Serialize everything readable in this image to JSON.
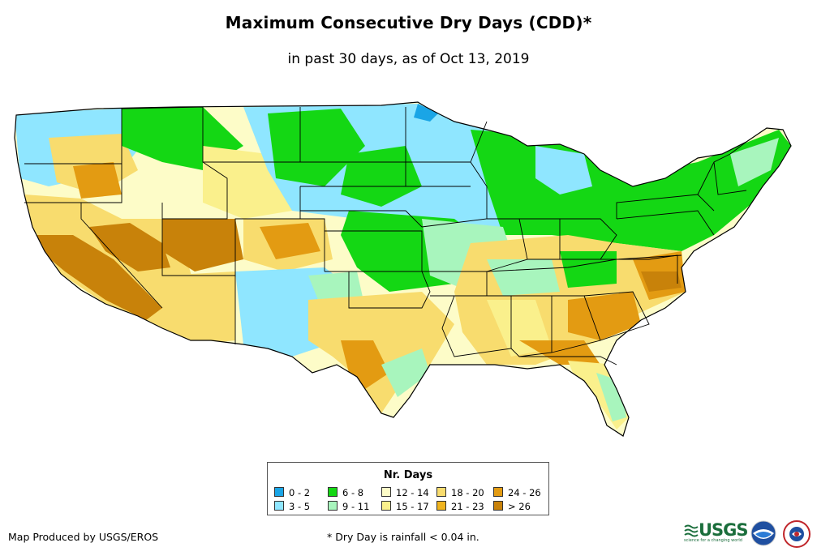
{
  "title": "Maximum Consecutive Dry Days (CDD)*",
  "subtitle": "in past 30 days, as of Oct 13, 2019",
  "legend": {
    "title": "Nr. Days",
    "items": [
      {
        "label": "0 - 2",
        "color": "#1aa5e6"
      },
      {
        "label": "3 - 5",
        "color": "#8fe6ff"
      },
      {
        "label": "6 - 8",
        "color": "#14d714"
      },
      {
        "label": "9 - 11",
        "color": "#a8f5bd"
      },
      {
        "label": "12 - 14",
        "color": "#fdfcc8"
      },
      {
        "label": "15 - 17",
        "color": "#faf08c"
      },
      {
        "label": "18 - 20",
        "color": "#f8dc6e"
      },
      {
        "label": "21 - 23",
        "color": "#f0b41e"
      },
      {
        "label": "24 - 26",
        "color": "#e39b12"
      },
      {
        "label": "> 26",
        "color": "#c8820a"
      }
    ]
  },
  "credit": "Map Produced by USGS/EROS",
  "footnote": "* Dry Day is rainfall < 0.04 in.",
  "logos": {
    "usgs_text": "USGS",
    "usgs_tagline": "science for a changing world"
  }
}
